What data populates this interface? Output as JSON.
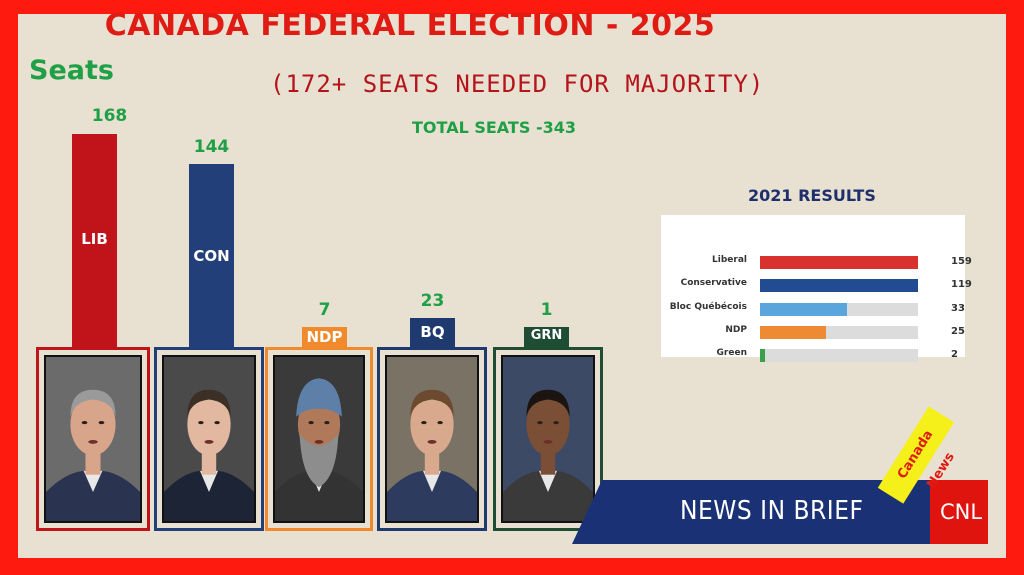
{
  "header": {
    "title": "CANADA FEDERAL ELECTION - 2025",
    "subtitle": "(172+ SEATS NEEDED FOR MAJORITY)",
    "total_seats": "TOTAL SEATS -343",
    "seats_label": "Seats"
  },
  "colors": {
    "frame": "#ff1a10",
    "background": "#e8e1d2",
    "lib": "#c0141a",
    "con": "#233f7a",
    "ndp": "#f08a2c",
    "bq": "#1e3a6e",
    "grn": "#1f4d33",
    "value_green": "#1fa046"
  },
  "chart_data": [
    {
      "type": "bar",
      "title": "CANADA FEDERAL ELECTION - 2025",
      "ylabel": "Seats",
      "categories": [
        "LIB",
        "CON",
        "NDP",
        "BQ",
        "GRN"
      ],
      "values": [
        168,
        144,
        7,
        23,
        1
      ],
      "value_labels": [
        "168",
        "144",
        "7",
        "23",
        "1"
      ],
      "ylim": [
        0,
        172
      ]
    },
    {
      "type": "bar",
      "orientation": "horizontal",
      "title": "2021 RESULTS",
      "categories": [
        "Liberal",
        "Conservative",
        "Bloc Québécois",
        "NDP",
        "Green"
      ],
      "values": [
        159,
        119,
        33,
        25,
        2
      ],
      "value_labels": [
        "159",
        "119",
        "33",
        "25",
        "2"
      ],
      "colors": [
        "#d9322e",
        "#224c91",
        "#5aa5dc",
        "#ef8a34",
        "#3aa04a"
      ],
      "xlim": [
        0,
        60
      ]
    }
  ],
  "results_2021": {
    "title": "2021 RESULTS"
  },
  "portraits": [
    {
      "icon": "portrait-icon",
      "party": "LIB"
    },
    {
      "icon": "portrait-icon",
      "party": "CON"
    },
    {
      "icon": "portrait-icon",
      "party": "NDP"
    },
    {
      "icon": "portrait-icon",
      "party": "BQ"
    },
    {
      "icon": "portrait-icon",
      "party": "GRN"
    }
  ],
  "footer": {
    "banner_text": "NEWS IN BRIEF",
    "tag_text": "Canada News",
    "brand": "CNL"
  }
}
